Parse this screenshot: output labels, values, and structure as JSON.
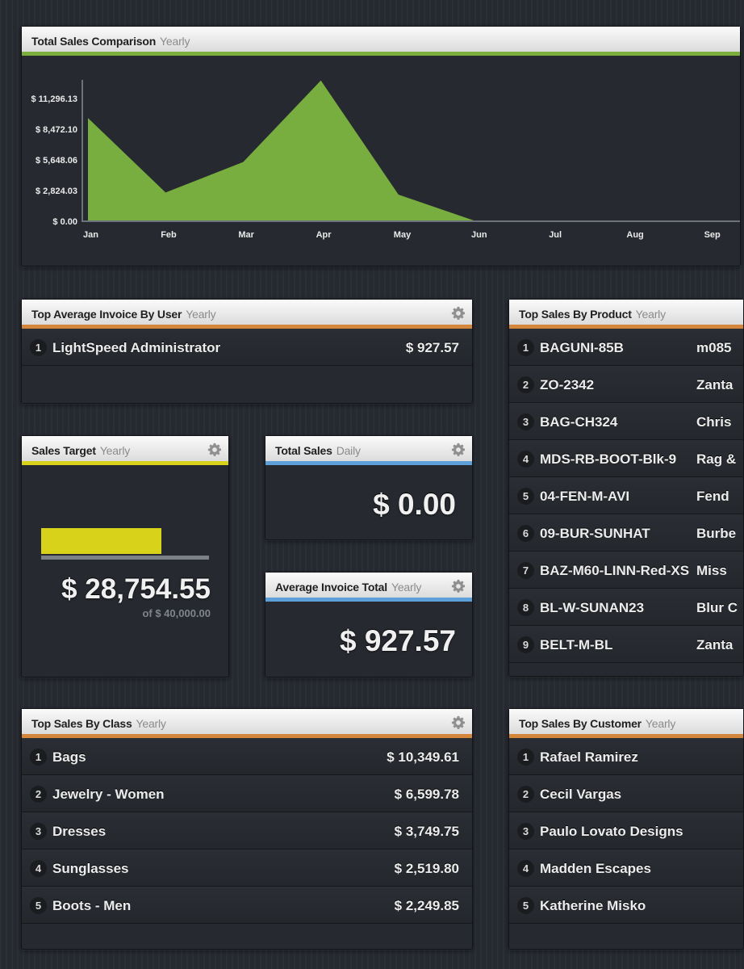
{
  "colors": {
    "green": "#7cae3c",
    "orange": "#d4873a",
    "yellow": "#d8d31a",
    "blue": "#5d9fd8",
    "chart_fill": "#78ad3f"
  },
  "total_sales_comparison": {
    "title": "Total Sales Comparison",
    "period": "Yearly"
  },
  "chart_data": {
    "type": "area",
    "title": "Total Sales Comparison",
    "categories": [
      "Jan",
      "Feb",
      "Mar",
      "Apr",
      "May",
      "Jun",
      "Jul",
      "Aug",
      "Sep"
    ],
    "values": [
      9500,
      2650,
      5450,
      12950,
      2450,
      0,
      null,
      null,
      null
    ],
    "y_ticks": [
      0,
      2824.03,
      5648.06,
      8472.1,
      11296.13
    ],
    "y_tick_labels": [
      "$ 0.00",
      "$ 2,824.03",
      "$ 5,648.06",
      "$ 8,472.10",
      "$ 11,296.13"
    ],
    "ylim": [
      0,
      13000
    ],
    "xlabel": "",
    "ylabel": ""
  },
  "avg_invoice_by_user": {
    "title": "Top Average Invoice By User",
    "period": "Yearly",
    "rows": [
      {
        "rank": "1",
        "label": "LightSpeed Administrator",
        "value": "$ 927.57"
      }
    ]
  },
  "sales_target": {
    "title": "Sales Target",
    "period": "Yearly",
    "amount": "$ 28,754.55",
    "target_text": "of $ 40,000.00",
    "progress": 0.719
  },
  "total_sales": {
    "title": "Total Sales",
    "period": "Daily",
    "amount": "$ 0.00"
  },
  "average_invoice_total": {
    "title": "Average Invoice Total",
    "period": "Yearly",
    "amount": "$ 927.57"
  },
  "top_sales_by_product": {
    "title": "Top Sales By Product",
    "period": "Yearly",
    "rows": [
      {
        "rank": "1",
        "label": "BAGUNI-85B",
        "value": "m085"
      },
      {
        "rank": "2",
        "label": "ZO-2342",
        "value": "Zanta"
      },
      {
        "rank": "3",
        "label": "BAG-CH324",
        "value": "Chris"
      },
      {
        "rank": "4",
        "label": "MDS-RB-BOOT-Blk-9",
        "value": "Rag &"
      },
      {
        "rank": "5",
        "label": "04-FEN-M-AVI",
        "value": "Fend"
      },
      {
        "rank": "6",
        "label": "09-BUR-SUNHAT",
        "value": "Burbe"
      },
      {
        "rank": "7",
        "label": "BAZ-M60-LINN-Red-XS",
        "value": "Miss"
      },
      {
        "rank": "8",
        "label": "BL-W-SUNAN23",
        "value": "Blur C"
      },
      {
        "rank": "9",
        "label": "BELT-M-BL",
        "value": "Zanta"
      }
    ]
  },
  "top_sales_by_class": {
    "title": "Top Sales By Class",
    "period": "Yearly",
    "rows": [
      {
        "rank": "1",
        "label": "Bags",
        "value": "$ 10,349.61"
      },
      {
        "rank": "2",
        "label": "Jewelry - Women",
        "value": "$ 6,599.78"
      },
      {
        "rank": "3",
        "label": "Dresses",
        "value": "$ 3,749.75"
      },
      {
        "rank": "4",
        "label": "Sunglasses",
        "value": "$ 2,519.80"
      },
      {
        "rank": "5",
        "label": "Boots - Men",
        "value": "$ 2,249.85"
      }
    ]
  },
  "top_sales_by_customer": {
    "title": "Top Sales By Customer",
    "period": "Yearly",
    "rows": [
      {
        "rank": "1",
        "label": "Rafael Ramirez"
      },
      {
        "rank": "2",
        "label": "Cecil Vargas"
      },
      {
        "rank": "3",
        "label": "Paulo Lovato Designs"
      },
      {
        "rank": "4",
        "label": "Madden Escapes"
      },
      {
        "rank": "5",
        "label": "Katherine Misko"
      }
    ]
  }
}
